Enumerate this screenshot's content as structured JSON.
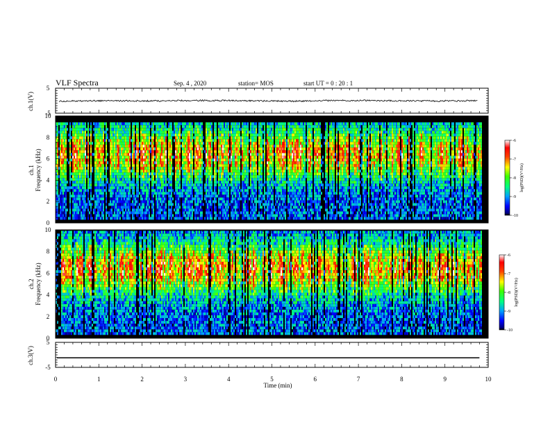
{
  "header": {
    "title": "VLF Spectra",
    "date": "Sep. 4 , 2020",
    "station": "station= MOS",
    "start": "start UT =  0 : 20 : 1"
  },
  "chart_data": [
    {
      "type": "line",
      "panel": "ch1-waveform",
      "ylabel": "ch.1(V)",
      "ylim": [
        -5,
        5
      ],
      "yticks": [
        "5",
        "-5"
      ],
      "series": [
        {
          "values": [
            -0.2,
            0.0,
            -0.1,
            0.1,
            0.0,
            -0.2,
            0.1,
            0.0,
            -0.1,
            0.0
          ]
        }
      ]
    },
    {
      "type": "heatmap",
      "panel": "ch1-spectrogram",
      "ylabel": "ch.1\nFrequency (kHz)",
      "ylim": [
        0,
        10
      ],
      "yticks": [
        "0",
        "2",
        "4",
        "6",
        "8",
        "10"
      ],
      "xlim": [
        0,
        10
      ],
      "xunit": "min",
      "colorbar": {
        "range": [
          -10,
          -6
        ],
        "ticks": [
          "-6",
          "-7",
          "-8",
          "-9",
          "-10"
        ],
        "label": "log(PSD)(V²/Hz)"
      }
    },
    {
      "type": "heatmap",
      "panel": "ch2-spectrogram",
      "ylabel": "ch.2\nFrequency (kHz)",
      "ylim": [
        0,
        10
      ],
      "yticks": [
        "0",
        "2",
        "4",
        "6",
        "8",
        "10"
      ],
      "xlim": [
        0,
        10
      ],
      "xunit": "min",
      "colorbar": {
        "range": [
          -10,
          -6
        ],
        "ticks": [
          "-6",
          "-7",
          "-8",
          "-9",
          "-10"
        ],
        "label": "log(PSD)(V²/Hz)"
      }
    },
    {
      "type": "line",
      "panel": "ch3-waveform",
      "ylabel": "ch.3(V)",
      "ylim": [
        -5,
        5
      ],
      "yticks": [
        "5",
        "-5"
      ],
      "series": [
        {
          "values": [
            -1.2,
            -1.2,
            -1.2,
            -1.2,
            -1.2,
            -1.2,
            -1.2,
            -1.2,
            -1.2,
            -1.2
          ]
        }
      ]
    }
  ],
  "xaxis": {
    "label": "Time  (min)",
    "ticks": [
      "0",
      "1",
      "2",
      "3",
      "4",
      "5",
      "6",
      "7",
      "8",
      "9",
      "10"
    ],
    "range": [
      0,
      10
    ],
    "data_end": 9.83
  },
  "colors": {
    "frame": "#000000",
    "background": "#ffffff"
  }
}
